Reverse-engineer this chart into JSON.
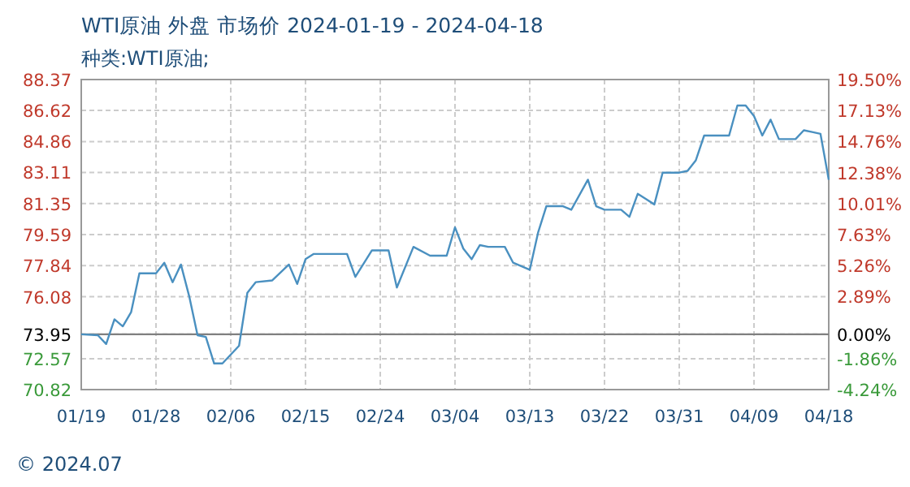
{
  "chart_data": {
    "type": "line",
    "title": "WTI原油 外盘 市场价 2024-01-19 - 2024-04-18",
    "subtitle": "种类:WTI原油;",
    "annotations": [
      "© 2024.07"
    ],
    "x": [
      "2024-01-19",
      "2024-01-21",
      "2024-01-22",
      "2024-01-23",
      "2024-01-24",
      "2024-01-25",
      "2024-01-26",
      "2024-01-28",
      "2024-01-29",
      "2024-01-30",
      "2024-01-31",
      "2024-02-01",
      "2024-02-02",
      "2024-02-03",
      "2024-02-04",
      "2024-02-05",
      "2024-02-07",
      "2024-02-08",
      "2024-02-09",
      "2024-02-11",
      "2024-02-13",
      "2024-02-14",
      "2024-02-15",
      "2024-02-16",
      "2024-02-20",
      "2024-02-21",
      "2024-02-23",
      "2024-02-25",
      "2024-02-26",
      "2024-02-28",
      "2024-03-01",
      "2024-03-03",
      "2024-03-04",
      "2024-03-05",
      "2024-03-06",
      "2024-03-07",
      "2024-03-08",
      "2024-03-10",
      "2024-03-11",
      "2024-03-13",
      "2024-03-14",
      "2024-03-15",
      "2024-03-17",
      "2024-03-18",
      "2024-03-20",
      "2024-03-21",
      "2024-03-22",
      "2024-03-24",
      "2024-03-25",
      "2024-03-26",
      "2024-03-27",
      "2024-03-28",
      "2024-03-29",
      "2024-03-31",
      "2024-04-01",
      "2024-04-02",
      "2024-04-03",
      "2024-04-05",
      "2024-04-06",
      "2024-04-07",
      "2024-04-08",
      "2024-04-09",
      "2024-04-10",
      "2024-04-11",
      "2024-04-12",
      "2024-04-14",
      "2024-04-15",
      "2024-04-16",
      "2024-04-17",
      "2024-04-18"
    ],
    "series": [
      {
        "color": "#4a90c0",
        "values": [
          73.95,
          73.9,
          73.4,
          74.8,
          74.4,
          75.2,
          77.4,
          77.4,
          78.0,
          76.9,
          77.9,
          76.1,
          73.9,
          73.8,
          72.3,
          72.3,
          73.3,
          76.3,
          76.9,
          77.0,
          77.9,
          76.8,
          78.2,
          78.5,
          78.5,
          77.2,
          78.7,
          78.7,
          76.6,
          78.9,
          78.4,
          78.4,
          80.0,
          78.8,
          78.2,
          79.0,
          78.9,
          78.9,
          78.0,
          77.6,
          79.7,
          81.2,
          81.2,
          81.0,
          82.7,
          81.2,
          81.0,
          81.0,
          80.6,
          81.9,
          81.6,
          81.3,
          83.1,
          83.1,
          83.2,
          83.8,
          85.2,
          85.2,
          85.2,
          86.9,
          86.9,
          86.3,
          85.2,
          86.1,
          85.0,
          85.0,
          85.5,
          85.4,
          85.3,
          82.7
        ]
      }
    ],
    "xlim": [
      "2024-01-19",
      "2024-04-18"
    ],
    "xticks": [
      {
        "value": "2024-01-19",
        "label": "01/19"
      },
      {
        "value": "2024-01-28",
        "label": "01/28"
      },
      {
        "value": "2024-02-06",
        "label": "02/06"
      },
      {
        "value": "2024-02-15",
        "label": "02/15"
      },
      {
        "value": "2024-02-24",
        "label": "02/24"
      },
      {
        "value": "2024-03-04",
        "label": "03/04"
      },
      {
        "value": "2024-03-13",
        "label": "03/13"
      },
      {
        "value": "2024-03-22",
        "label": "03/22"
      },
      {
        "value": "2024-03-31",
        "label": "03/31"
      },
      {
        "value": "2024-04-09",
        "label": "04/09"
      },
      {
        "value": "2024-04-18",
        "label": "04/18"
      }
    ],
    "ylim": [
      70.82,
      88.37
    ],
    "yticks": [
      70.82,
      72.57,
      73.95,
      76.08,
      77.84,
      79.59,
      81.35,
      83.11,
      84.86,
      86.62,
      88.37
    ],
    "y2lim": [
      -4.24,
      19.5
    ],
    "y2ticks": [
      {
        "value": -4.24,
        "label": "-4.24%"
      },
      {
        "value": -1.86,
        "label": "-1.86%"
      },
      {
        "value": 0,
        "label": "0.00%"
      },
      {
        "value": 2.89,
        "label": "2.89%"
      },
      {
        "value": 5.26,
        "label": "5.26%"
      },
      {
        "value": 7.63,
        "label": "7.63%"
      },
      {
        "value": 10.01,
        "label": "10.01%"
      },
      {
        "value": 12.38,
        "label": "12.38%"
      },
      {
        "value": 14.76,
        "label": "14.76%"
      },
      {
        "value": 17.13,
        "label": "17.13%"
      },
      {
        "value": 19.5,
        "label": "19.50%"
      }
    ],
    "ref_lines": [
      {
        "axis": "y",
        "value": 73.95,
        "color": "#808080"
      }
    ],
    "grid": true
  }
}
